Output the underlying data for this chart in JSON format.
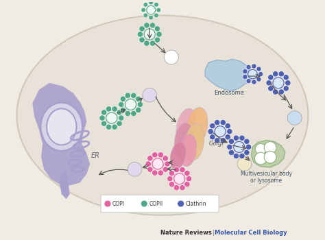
{
  "bg_color": "#f0ece4",
  "cell_face": "#e8e2d8",
  "cell_edge": "#d0c8b8",
  "er_body_color": "#a8a0cc",
  "er_nucleus_face": "#d8d4e8",
  "er_nucleus_edge": "#a8a0cc",
  "golgi_colors": [
    "#e8b090",
    "#f0c8a0",
    "#e0a8b8",
    "#d890a8",
    "#c878a0"
  ],
  "endo_face": "#b0cce0",
  "endo_edge": "#90b0cc",
  "lyso_face": "#b8ccA0",
  "lyso_edge": "#90b080",
  "copi_color": "#e060a0",
  "copii_color": "#50a888",
  "clathrin_color": "#5060b0",
  "arrow_color": "#555555",
  "plain_vesicle_colors": [
    "#e0d8ec",
    "#c8e0f0",
    "#f0e8c8"
  ],
  "footer_left": "Nature Reviews",
  "footer_sep": " | ",
  "footer_right": "Molecular Cell Biology",
  "legend_items": [
    {
      "label": "COPI",
      "color": "#e060a0"
    },
    {
      "label": "COPII",
      "color": "#50a888"
    },
    {
      "label": "Clathrin",
      "color": "#5060b0"
    }
  ]
}
